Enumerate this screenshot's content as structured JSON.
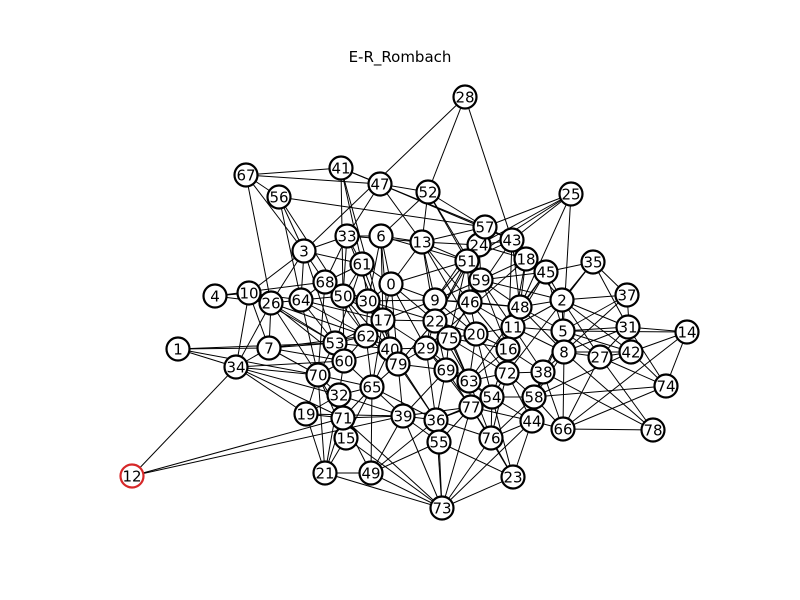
{
  "title": "E-R_Rombach",
  "colors": {
    "edge": "#000000",
    "node_fill": "#ffffff",
    "node_stroke": "#000000",
    "highlight_stroke": "#d62728"
  },
  "highlighted_node": "12",
  "nodes": [
    "0",
    "1",
    "2",
    "3",
    "4",
    "5",
    "6",
    "7",
    "8",
    "9",
    "10",
    "11",
    "12",
    "13",
    "14",
    "15",
    "16",
    "17",
    "18",
    "19",
    "20",
    "21",
    "22",
    "23",
    "24",
    "25",
    "26",
    "27",
    "28",
    "29",
    "30",
    "31",
    "32",
    "33",
    "34",
    "35",
    "36",
    "37",
    "38",
    "39",
    "40",
    "41",
    "42",
    "43",
    "44",
    "45",
    "46",
    "47",
    "48",
    "49",
    "50",
    "51",
    "52",
    "53",
    "54",
    "55",
    "56",
    "57",
    "58",
    "59",
    "60",
    "61",
    "62",
    "63",
    "64",
    "65",
    "66",
    "67",
    "68",
    "69",
    "70",
    "71",
    "72",
    "73",
    "74",
    "75",
    "76",
    "77",
    "78",
    "79"
  ],
  "edges": [
    [
      "28",
      "52"
    ],
    [
      "28",
      "43"
    ],
    [
      "28",
      "3"
    ],
    [
      "67",
      "41"
    ],
    [
      "67",
      "56"
    ],
    [
      "67",
      "26"
    ],
    [
      "67",
      "3"
    ],
    [
      "67",
      "47"
    ],
    [
      "41",
      "47"
    ],
    [
      "41",
      "61"
    ],
    [
      "41",
      "50"
    ],
    [
      "41",
      "57"
    ],
    [
      "41",
      "17"
    ],
    [
      "56",
      "3"
    ],
    [
      "56",
      "64"
    ],
    [
      "56",
      "50"
    ],
    [
      "56",
      "57"
    ],
    [
      "47",
      "52"
    ],
    [
      "47",
      "13"
    ],
    [
      "47",
      "33"
    ],
    [
      "47",
      "43"
    ],
    [
      "52",
      "57"
    ],
    [
      "52",
      "6"
    ],
    [
      "52",
      "51"
    ],
    [
      "52",
      "59"
    ],
    [
      "52",
      "13"
    ],
    [
      "25",
      "57"
    ],
    [
      "25",
      "43"
    ],
    [
      "25",
      "51"
    ],
    [
      "25",
      "5"
    ],
    [
      "25",
      "24"
    ],
    [
      "25",
      "48"
    ],
    [
      "57",
      "24"
    ],
    [
      "57",
      "43"
    ],
    [
      "57",
      "13"
    ],
    [
      "57",
      "46"
    ],
    [
      "57",
      "9"
    ],
    [
      "43",
      "24"
    ],
    [
      "43",
      "18"
    ],
    [
      "43",
      "48"
    ],
    [
      "43",
      "46"
    ],
    [
      "43",
      "16"
    ],
    [
      "43",
      "51"
    ],
    [
      "3",
      "68"
    ],
    [
      "3",
      "61"
    ],
    [
      "3",
      "33"
    ],
    [
      "3",
      "64"
    ],
    [
      "3",
      "10"
    ],
    [
      "3",
      "26"
    ],
    [
      "3",
      "53"
    ],
    [
      "33",
      "6"
    ],
    [
      "33",
      "13"
    ],
    [
      "33",
      "61"
    ],
    [
      "33",
      "50"
    ],
    [
      "33",
      "79"
    ],
    [
      "33",
      "68"
    ],
    [
      "6",
      "13"
    ],
    [
      "6",
      "17"
    ],
    [
      "6",
      "0"
    ],
    [
      "6",
      "51"
    ],
    [
      "6",
      "40"
    ],
    [
      "6",
      "30"
    ],
    [
      "13",
      "24"
    ],
    [
      "13",
      "51"
    ],
    [
      "13",
      "9"
    ],
    [
      "13",
      "46"
    ],
    [
      "13",
      "20"
    ],
    [
      "13",
      "22"
    ],
    [
      "13",
      "0"
    ],
    [
      "24",
      "51"
    ],
    [
      "24",
      "59"
    ],
    [
      "24",
      "18"
    ],
    [
      "24",
      "46"
    ],
    [
      "24",
      "22"
    ],
    [
      "18",
      "45"
    ],
    [
      "18",
      "59"
    ],
    [
      "18",
      "48"
    ],
    [
      "18",
      "11"
    ],
    [
      "18",
      "2"
    ],
    [
      "18",
      "29"
    ],
    [
      "35",
      "45"
    ],
    [
      "35",
      "2"
    ],
    [
      "35",
      "37"
    ],
    [
      "35",
      "31"
    ],
    [
      "35",
      "72"
    ],
    [
      "61",
      "0"
    ],
    [
      "61",
      "68"
    ],
    [
      "61",
      "50"
    ],
    [
      "61",
      "30"
    ],
    [
      "61",
      "53"
    ],
    [
      "61",
      "17"
    ],
    [
      "51",
      "59"
    ],
    [
      "51",
      "9"
    ],
    [
      "51",
      "0"
    ],
    [
      "51",
      "46"
    ],
    [
      "51",
      "22"
    ],
    [
      "51",
      "75"
    ],
    [
      "59",
      "46"
    ],
    [
      "59",
      "48"
    ],
    [
      "59",
      "45"
    ],
    [
      "59",
      "9"
    ],
    [
      "59",
      "11"
    ],
    [
      "59",
      "16"
    ],
    [
      "59",
      "2"
    ],
    [
      "45",
      "2"
    ],
    [
      "45",
      "48"
    ],
    [
      "45",
      "11"
    ],
    [
      "45",
      "5"
    ],
    [
      "45",
      "63"
    ],
    [
      "4",
      "10"
    ],
    [
      "4",
      "26"
    ],
    [
      "4",
      "68"
    ],
    [
      "10",
      "26"
    ],
    [
      "10",
      "34"
    ],
    [
      "10",
      "7"
    ],
    [
      "10",
      "64"
    ],
    [
      "10",
      "53"
    ],
    [
      "68",
      "50"
    ],
    [
      "68",
      "64"
    ],
    [
      "68",
      "30"
    ],
    [
      "68",
      "62"
    ],
    [
      "68",
      "70"
    ],
    [
      "0",
      "30"
    ],
    [
      "0",
      "9"
    ],
    [
      "0",
      "17"
    ],
    [
      "0",
      "22"
    ],
    [
      "0",
      "29"
    ],
    [
      "0",
      "79"
    ],
    [
      "37",
      "2"
    ],
    [
      "37",
      "5"
    ],
    [
      "37",
      "42"
    ],
    [
      "37",
      "8"
    ],
    [
      "26",
      "64"
    ],
    [
      "26",
      "7"
    ],
    [
      "26",
      "34"
    ],
    [
      "26",
      "53"
    ],
    [
      "26",
      "70"
    ],
    [
      "26",
      "60"
    ],
    [
      "26",
      "62"
    ],
    [
      "64",
      "50"
    ],
    [
      "64",
      "53"
    ],
    [
      "64",
      "70"
    ],
    [
      "64",
      "62"
    ],
    [
      "64",
      "17"
    ],
    [
      "50",
      "30"
    ],
    [
      "50",
      "17"
    ],
    [
      "50",
      "62"
    ],
    [
      "50",
      "40"
    ],
    [
      "50",
      "60"
    ],
    [
      "30",
      "17"
    ],
    [
      "30",
      "9"
    ],
    [
      "30",
      "22"
    ],
    [
      "30",
      "40"
    ],
    [
      "30",
      "62"
    ],
    [
      "9",
      "46"
    ],
    [
      "9",
      "22"
    ],
    [
      "9",
      "17"
    ],
    [
      "9",
      "20"
    ],
    [
      "9",
      "75"
    ],
    [
      "9",
      "48"
    ],
    [
      "9",
      "29"
    ],
    [
      "9",
      "63"
    ],
    [
      "46",
      "48"
    ],
    [
      "46",
      "20"
    ],
    [
      "46",
      "11"
    ],
    [
      "46",
      "22"
    ],
    [
      "46",
      "75"
    ],
    [
      "46",
      "16"
    ],
    [
      "48",
      "2"
    ],
    [
      "48",
      "11"
    ],
    [
      "48",
      "5"
    ],
    [
      "48",
      "16"
    ],
    [
      "48",
      "8"
    ],
    [
      "2",
      "5"
    ],
    [
      "2",
      "31"
    ],
    [
      "2",
      "8"
    ],
    [
      "2",
      "42"
    ],
    [
      "2",
      "27"
    ],
    [
      "2",
      "11"
    ],
    [
      "14",
      "31"
    ],
    [
      "14",
      "42"
    ],
    [
      "14",
      "74"
    ],
    [
      "14",
      "66"
    ],
    [
      "14",
      "5"
    ],
    [
      "31",
      "5"
    ],
    [
      "31",
      "42"
    ],
    [
      "31",
      "27"
    ],
    [
      "31",
      "8"
    ],
    [
      "31",
      "74"
    ],
    [
      "1",
      "34"
    ],
    [
      "1",
      "7"
    ],
    [
      "1",
      "53"
    ],
    [
      "1",
      "70"
    ],
    [
      "7",
      "34"
    ],
    [
      "7",
      "53"
    ],
    [
      "7",
      "70"
    ],
    [
      "7",
      "60"
    ],
    [
      "7",
      "62"
    ],
    [
      "34",
      "70"
    ],
    [
      "34",
      "12"
    ],
    [
      "34",
      "19"
    ],
    [
      "34",
      "32"
    ],
    [
      "34",
      "71"
    ],
    [
      "34",
      "60"
    ],
    [
      "12",
      "39"
    ],
    [
      "53",
      "62"
    ],
    [
      "53",
      "60"
    ],
    [
      "53",
      "70"
    ],
    [
      "53",
      "17"
    ],
    [
      "53",
      "40"
    ],
    [
      "17",
      "62"
    ],
    [
      "17",
      "22"
    ],
    [
      "17",
      "40"
    ],
    [
      "17",
      "79"
    ],
    [
      "17",
      "29"
    ],
    [
      "17",
      "65"
    ],
    [
      "62",
      "40"
    ],
    [
      "62",
      "60"
    ],
    [
      "62",
      "65"
    ],
    [
      "62",
      "79"
    ],
    [
      "22",
      "75"
    ],
    [
      "22",
      "20"
    ],
    [
      "22",
      "29"
    ],
    [
      "22",
      "79"
    ],
    [
      "22",
      "69"
    ],
    [
      "22",
      "63"
    ],
    [
      "75",
      "20"
    ],
    [
      "75",
      "29"
    ],
    [
      "75",
      "69"
    ],
    [
      "75",
      "63"
    ],
    [
      "75",
      "16"
    ],
    [
      "75",
      "72"
    ],
    [
      "20",
      "11"
    ],
    [
      "20",
      "16"
    ],
    [
      "20",
      "63"
    ],
    [
      "20",
      "72"
    ],
    [
      "20",
      "54"
    ],
    [
      "11",
      "16"
    ],
    [
      "11",
      "5"
    ],
    [
      "11",
      "72"
    ],
    [
      "11",
      "38"
    ],
    [
      "11",
      "8"
    ],
    [
      "5",
      "8"
    ],
    [
      "5",
      "27"
    ],
    [
      "5",
      "42"
    ],
    [
      "5",
      "38"
    ],
    [
      "5",
      "58"
    ],
    [
      "8",
      "27"
    ],
    [
      "8",
      "42"
    ],
    [
      "8",
      "38"
    ],
    [
      "8",
      "58"
    ],
    [
      "8",
      "66"
    ],
    [
      "8",
      "78"
    ],
    [
      "27",
      "42"
    ],
    [
      "27",
      "74"
    ],
    [
      "27",
      "78"
    ],
    [
      "27",
      "66"
    ],
    [
      "42",
      "74"
    ],
    [
      "42",
      "58"
    ],
    [
      "60",
      "40"
    ],
    [
      "60",
      "70"
    ],
    [
      "60",
      "65"
    ],
    [
      "60",
      "32"
    ],
    [
      "40",
      "79"
    ],
    [
      "40",
      "29"
    ],
    [
      "40",
      "65"
    ],
    [
      "40",
      "36"
    ],
    [
      "79",
      "29"
    ],
    [
      "79",
      "69"
    ],
    [
      "79",
      "65"
    ],
    [
      "79",
      "39"
    ],
    [
      "79",
      "36"
    ],
    [
      "29",
      "69"
    ],
    [
      "29",
      "63"
    ],
    [
      "29",
      "36"
    ],
    [
      "29",
      "77"
    ],
    [
      "16",
      "72"
    ],
    [
      "16",
      "63"
    ],
    [
      "16",
      "38"
    ],
    [
      "16",
      "54"
    ],
    [
      "70",
      "32"
    ],
    [
      "70",
      "19"
    ],
    [
      "70",
      "71"
    ],
    [
      "70",
      "65"
    ],
    [
      "70",
      "15"
    ],
    [
      "70",
      "21"
    ],
    [
      "69",
      "63"
    ],
    [
      "69",
      "77"
    ],
    [
      "69",
      "36"
    ],
    [
      "69",
      "54"
    ],
    [
      "69",
      "39"
    ],
    [
      "63",
      "72"
    ],
    [
      "63",
      "54"
    ],
    [
      "63",
      "77"
    ],
    [
      "63",
      "76"
    ],
    [
      "72",
      "54"
    ],
    [
      "72",
      "38"
    ],
    [
      "72",
      "58"
    ],
    [
      "72",
      "44"
    ],
    [
      "72",
      "76"
    ],
    [
      "38",
      "58"
    ],
    [
      "38",
      "44"
    ],
    [
      "38",
      "66"
    ],
    [
      "65",
      "32"
    ],
    [
      "65",
      "71"
    ],
    [
      "65",
      "39"
    ],
    [
      "65",
      "36"
    ],
    [
      "65",
      "15"
    ],
    [
      "65",
      "49"
    ],
    [
      "32",
      "71"
    ],
    [
      "32",
      "19"
    ],
    [
      "32",
      "15"
    ],
    [
      "32",
      "21"
    ],
    [
      "32",
      "39"
    ],
    [
      "54",
      "77"
    ],
    [
      "54",
      "58"
    ],
    [
      "54",
      "44"
    ],
    [
      "54",
      "76"
    ],
    [
      "54",
      "36"
    ],
    [
      "54",
      "23"
    ],
    [
      "58",
      "44"
    ],
    [
      "58",
      "66"
    ],
    [
      "58",
      "76"
    ],
    [
      "19",
      "71"
    ],
    [
      "19",
      "21"
    ],
    [
      "19",
      "39"
    ],
    [
      "71",
      "39"
    ],
    [
      "71",
      "15"
    ],
    [
      "71",
      "21"
    ],
    [
      "71",
      "49"
    ],
    [
      "71",
      "73"
    ],
    [
      "39",
      "36"
    ],
    [
      "39",
      "55"
    ],
    [
      "39",
      "77"
    ],
    [
      "39",
      "49"
    ],
    [
      "39",
      "73"
    ],
    [
      "36",
      "77"
    ],
    [
      "36",
      "55"
    ],
    [
      "36",
      "76"
    ],
    [
      "36",
      "73"
    ],
    [
      "77",
      "76"
    ],
    [
      "77",
      "44"
    ],
    [
      "77",
      "55"
    ],
    [
      "77",
      "23"
    ],
    [
      "77",
      "73"
    ],
    [
      "44",
      "66"
    ],
    [
      "44",
      "23"
    ],
    [
      "44",
      "76"
    ],
    [
      "66",
      "78"
    ],
    [
      "66",
      "74"
    ],
    [
      "15",
      "21"
    ],
    [
      "15",
      "73"
    ],
    [
      "55",
      "73"
    ],
    [
      "55",
      "49"
    ],
    [
      "55",
      "23"
    ],
    [
      "76",
      "23"
    ],
    [
      "76",
      "73"
    ],
    [
      "21",
      "73"
    ],
    [
      "21",
      "49"
    ],
    [
      "49",
      "73"
    ],
    [
      "49",
      "36"
    ],
    [
      "73",
      "23"
    ],
    [
      "73",
      "44"
    ],
    [
      "74",
      "58"
    ],
    [
      "78",
      "38"
    ],
    [
      "12",
      "71"
    ]
  ]
}
